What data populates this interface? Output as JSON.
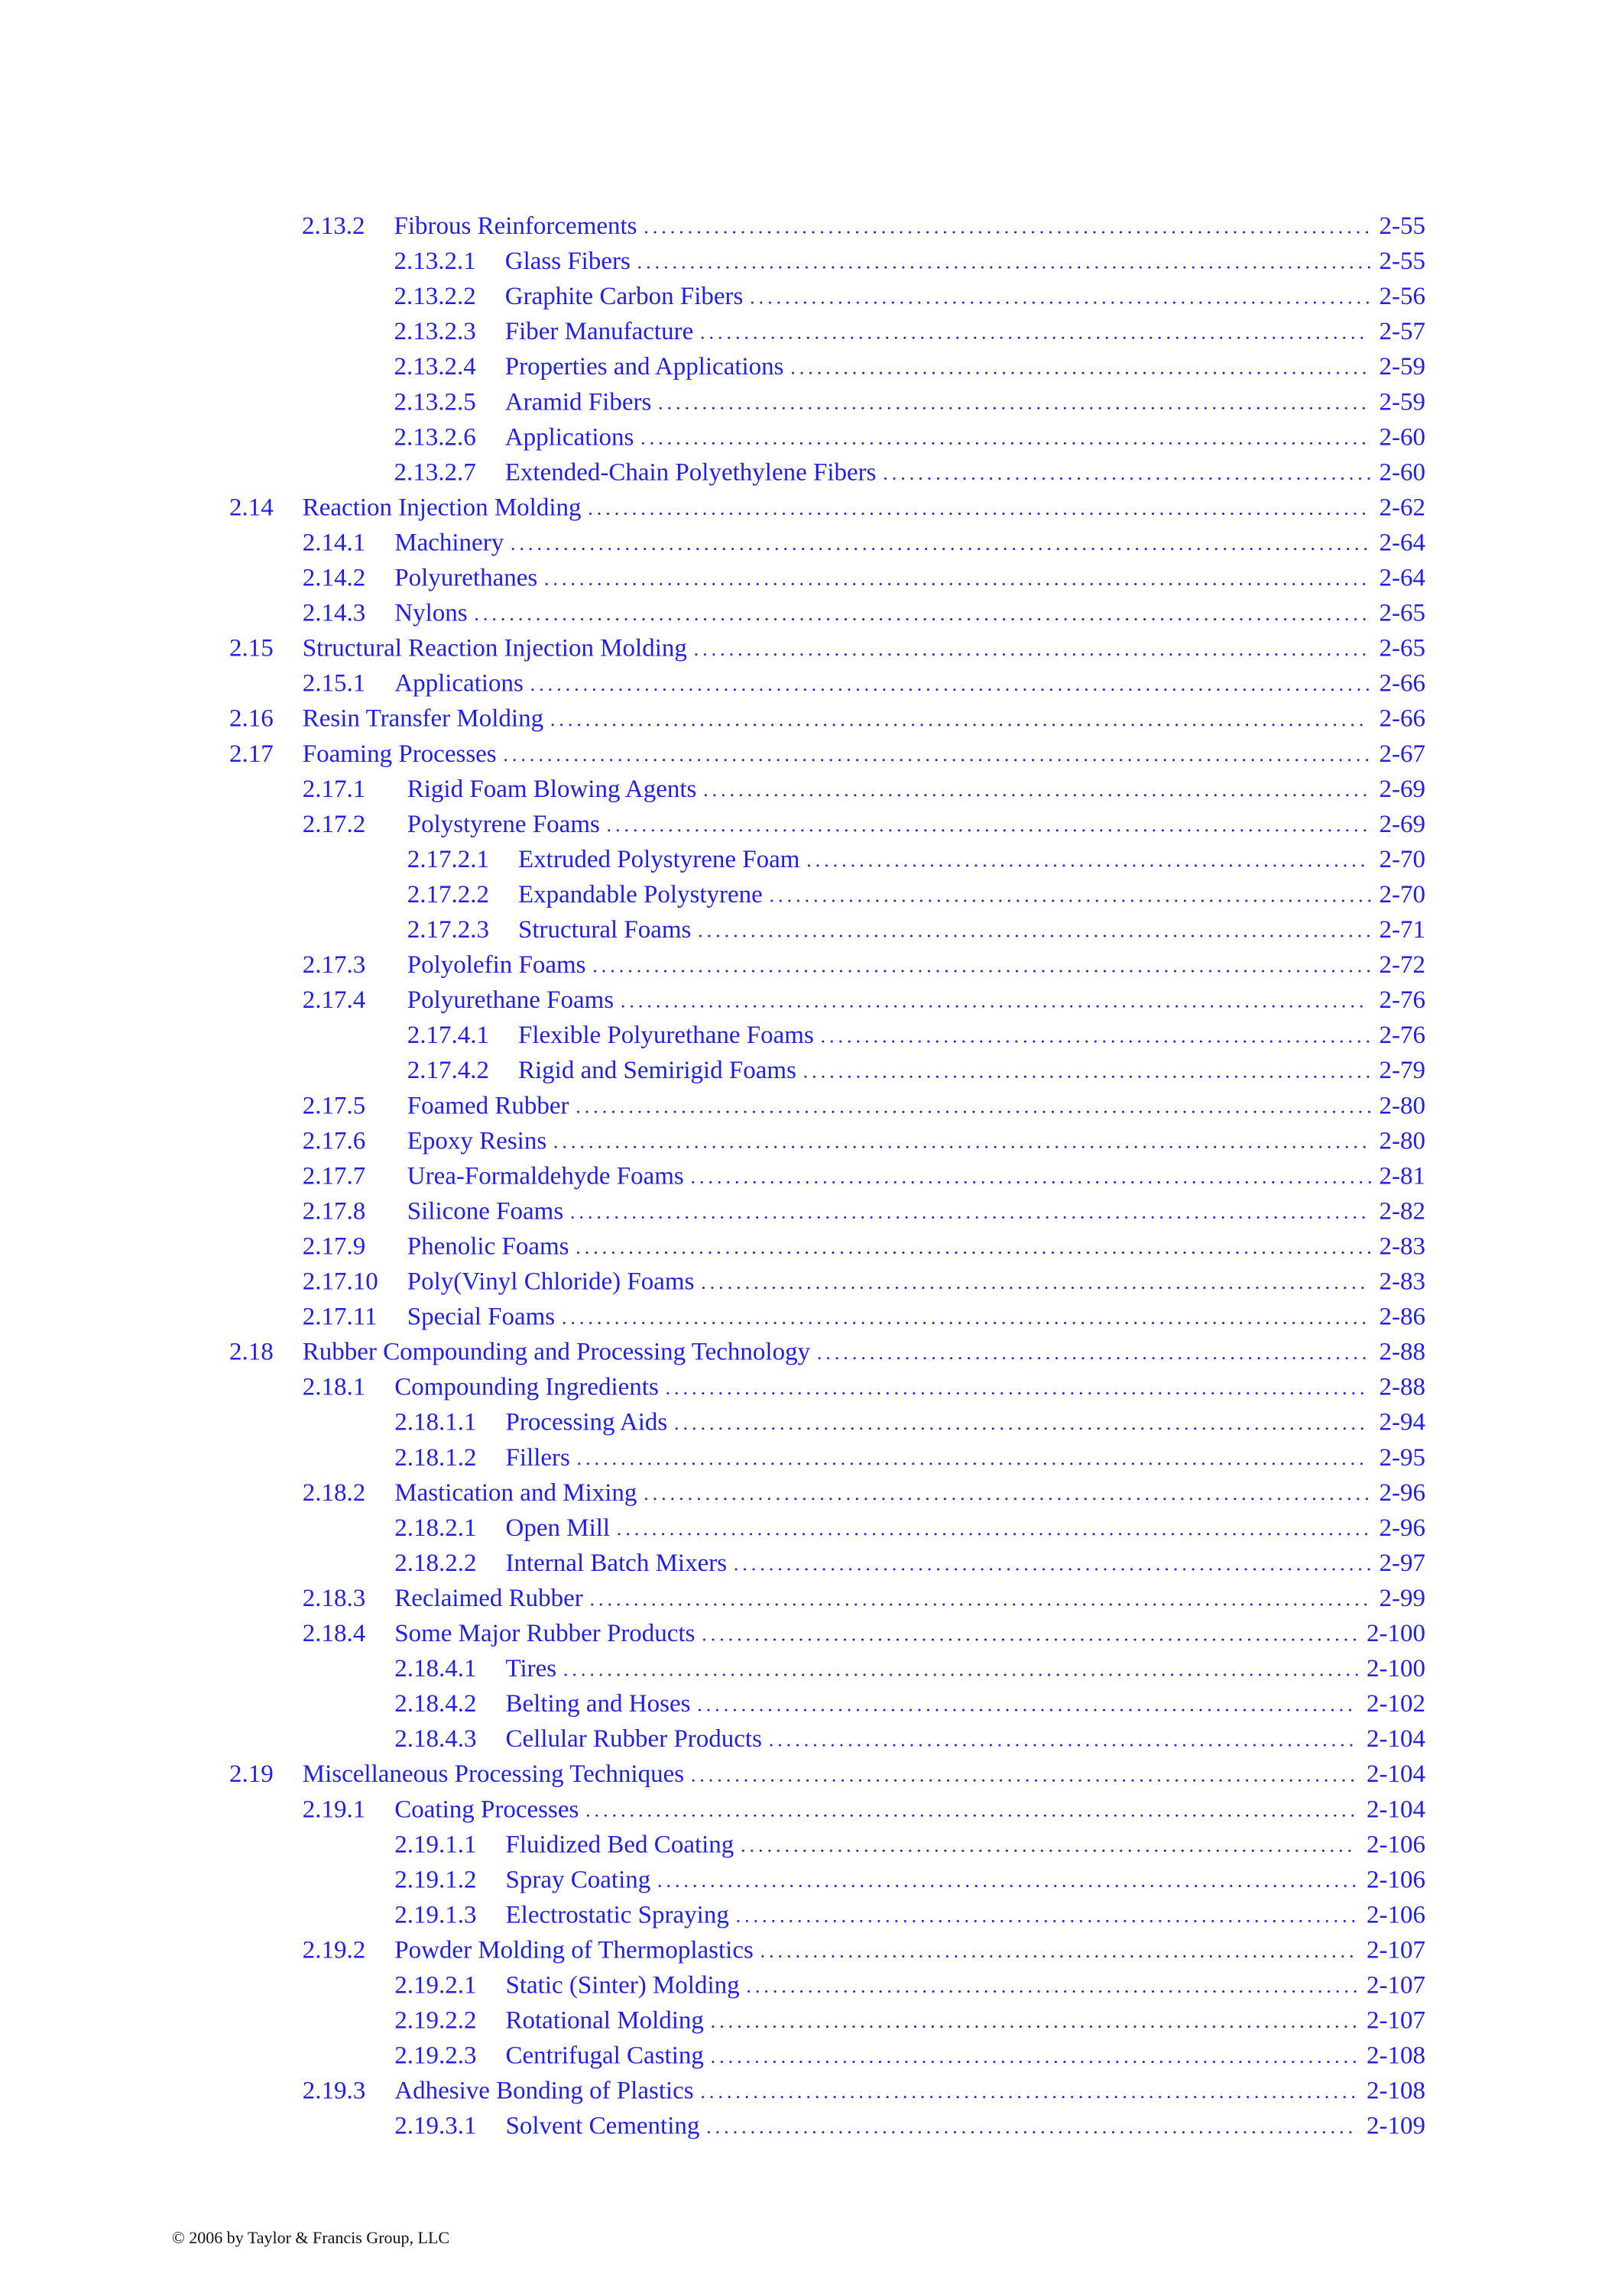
{
  "toc": {
    "entries": [
      {
        "number": "2.13.2",
        "title": "Fibrous Reinforcements",
        "page": "2-55"
      },
      {
        "number": "2.13.2.1",
        "title": "Glass Fibers",
        "page": "2-55"
      },
      {
        "number": "2.13.2.2",
        "title": "Graphite Carbon Fibers",
        "page": "2-56"
      },
      {
        "number": "2.13.2.3",
        "title": "Fiber Manufacture",
        "page": "2-57"
      },
      {
        "number": "2.13.2.4",
        "title": "Properties and Applications",
        "page": "2-59"
      },
      {
        "number": "2.13.2.5",
        "title": "Aramid Fibers",
        "page": "2-59"
      },
      {
        "number": "2.13.2.6",
        "title": "Applications",
        "page": "2-60"
      },
      {
        "number": "2.13.2.7",
        "title": "Extended-Chain Polyethylene Fibers",
        "page": "2-60"
      },
      {
        "number": "2.14",
        "title": "Reaction Injection Molding",
        "page": "2-62"
      },
      {
        "number": "2.14.1",
        "title": "Machinery",
        "page": "2-64"
      },
      {
        "number": "2.14.2",
        "title": "Polyurethanes",
        "page": "2-64"
      },
      {
        "number": "2.14.3",
        "title": "Nylons",
        "page": "2-65"
      },
      {
        "number": "2.15",
        "title": "Structural Reaction Injection Molding",
        "page": "2-65"
      },
      {
        "number": "2.15.1",
        "title": "Applications",
        "page": "2-66"
      },
      {
        "number": "2.16",
        "title": "Resin Transfer Molding",
        "page": "2-66"
      },
      {
        "number": "2.17",
        "title": "Foaming Processes",
        "page": "2-67"
      },
      {
        "number": "2.17.1",
        "title": "Rigid Foam Blowing Agents",
        "page": "2-69"
      },
      {
        "number": "2.17.2",
        "title": "Polystyrene Foams",
        "page": "2-69"
      },
      {
        "number": "2.17.2.1",
        "title": "Extruded Polystyrene Foam",
        "page": "2-70"
      },
      {
        "number": "2.17.2.2",
        "title": "Expandable Polystyrene",
        "page": "2-70"
      },
      {
        "number": "2.17.2.3",
        "title": "Structural Foams",
        "page": "2-71"
      },
      {
        "number": "2.17.3",
        "title": "Polyolefin Foams",
        "page": "2-72"
      },
      {
        "number": "2.17.4",
        "title": "Polyurethane Foams",
        "page": "2-76"
      },
      {
        "number": "2.17.4.1",
        "title": "Flexible Polyurethane Foams",
        "page": "2-76"
      },
      {
        "number": "2.17.4.2",
        "title": "Rigid and Semirigid Foams",
        "page": "2-79"
      },
      {
        "number": "2.17.5",
        "title": "Foamed Rubber",
        "page": "2-80"
      },
      {
        "number": "2.17.6",
        "title": "Epoxy Resins",
        "page": "2-80"
      },
      {
        "number": "2.17.7",
        "title": "Urea-Formaldehyde Foams",
        "page": "2-81"
      },
      {
        "number": "2.17.8",
        "title": "Silicone Foams",
        "page": "2-82"
      },
      {
        "number": "2.17.9",
        "title": "Phenolic Foams",
        "page": "2-83"
      },
      {
        "number": "2.17.10",
        "title": "Poly(Vinyl Chloride) Foams",
        "page": "2-83"
      },
      {
        "number": "2.17.11",
        "title": "Special Foams",
        "page": "2-86"
      },
      {
        "number": "2.18",
        "title": "Rubber Compounding and Processing Technology",
        "page": "2-88"
      },
      {
        "number": "2.18.1",
        "title": "Compounding Ingredients",
        "page": "2-88"
      },
      {
        "number": "2.18.1.1",
        "title": "Processing Aids",
        "page": "2-94"
      },
      {
        "number": "2.18.1.2",
        "title": "Fillers",
        "page": "2-95"
      },
      {
        "number": "2.18.2",
        "title": "Mastication and Mixing",
        "page": "2-96"
      },
      {
        "number": "2.18.2.1",
        "title": "Open Mill",
        "page": "2-96"
      },
      {
        "number": "2.18.2.2",
        "title": "Internal Batch Mixers",
        "page": "2-97"
      },
      {
        "number": "2.18.3",
        "title": "Reclaimed Rubber",
        "page": "2-99"
      },
      {
        "number": "2.18.4",
        "title": "Some Major Rubber Products",
        "page": "2-100"
      },
      {
        "number": "2.18.4.1",
        "title": "Tires",
        "page": "2-100"
      },
      {
        "number": "2.18.4.2",
        "title": "Belting and Hoses",
        "page": "2-102"
      },
      {
        "number": "2.18.4.3",
        "title": "Cellular Rubber Products",
        "page": "2-104"
      },
      {
        "number": "2.19",
        "title": "Miscellaneous Processing Techniques",
        "page": "2-104"
      },
      {
        "number": "2.19.1",
        "title": "Coating Processes",
        "page": "2-104"
      },
      {
        "number": "2.19.1.1",
        "title": "Fluidized Bed Coating",
        "page": "2-106"
      },
      {
        "number": "2.19.1.2",
        "title": "Spray Coating",
        "page": "2-106"
      },
      {
        "number": "2.19.1.3",
        "title": "Electrostatic Spraying",
        "page": "2-106"
      },
      {
        "number": "2.19.2",
        "title": "Powder Molding of Thermoplastics",
        "page": "2-107"
      },
      {
        "number": "2.19.2.1",
        "title": "Static (Sinter) Molding",
        "page": "2-107"
      },
      {
        "number": "2.19.2.2",
        "title": "Rotational Molding",
        "page": "2-107"
      },
      {
        "number": "2.19.2.3",
        "title": "Centrifugal Casting",
        "page": "2-108"
      },
      {
        "number": "2.19.3",
        "title": "Adhesive Bonding of Plastics",
        "page": "2-108"
      },
      {
        "number": "2.19.3.1",
        "title": "Solvent Cementing",
        "page": "2-109"
      }
    ]
  },
  "footer": {
    "copyright": "© 2006 by Taylor & Francis Group, LLC"
  }
}
